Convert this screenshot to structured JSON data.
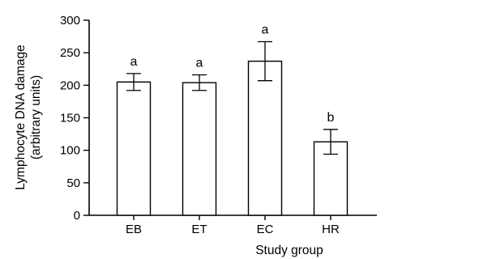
{
  "chart_data": {
    "type": "bar",
    "categories": [
      "EB",
      "ET",
      "EC",
      "HR"
    ],
    "values": [
      205,
      204,
      237,
      113
    ],
    "error": [
      13,
      12,
      30,
      19
    ],
    "significance_labels": [
      "a",
      "a",
      "a",
      "b"
    ],
    "xlabel": "Study group",
    "ylabel_line1": "Lymphocyte DNA damage",
    "ylabel_line2": "(arbitrary units)",
    "ylim": [
      0,
      300
    ],
    "yticks": [
      0,
      50,
      100,
      150,
      200,
      250,
      300
    ],
    "grid": false,
    "legend": "none",
    "colors": {
      "bar_fill": "#ffffff",
      "stroke": "#000000"
    }
  }
}
